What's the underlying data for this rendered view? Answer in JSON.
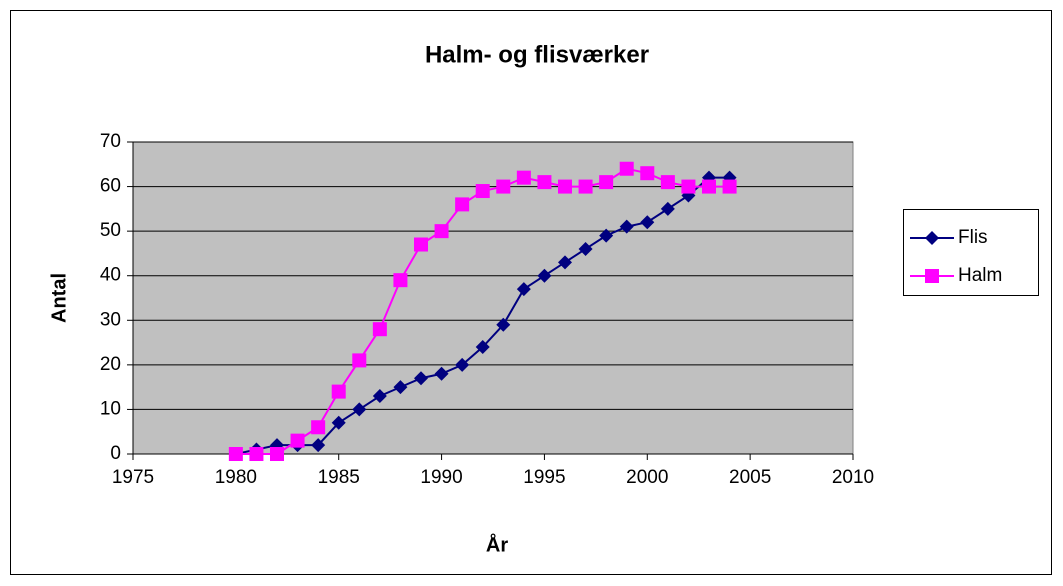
{
  "chart_data": {
    "type": "line",
    "title": "Halm- og flisværker",
    "x_label": "År",
    "y_label": "Antal",
    "x": [
      1980,
      1981,
      1982,
      1983,
      1984,
      1985,
      1986,
      1987,
      1988,
      1989,
      1990,
      1991,
      1992,
      1993,
      1994,
      1995,
      1996,
      1997,
      1998,
      1999,
      2000,
      2001,
      2002,
      2003,
      2004
    ],
    "series": [
      {
        "name": "Flis",
        "color": "#000080",
        "marker": "diamond",
        "values": [
          0,
          1,
          2,
          2,
          2,
          7,
          10,
          13,
          15,
          17,
          18,
          20,
          24,
          29,
          37,
          40,
          43,
          46,
          49,
          51,
          52,
          55,
          58,
          62,
          62
        ]
      },
      {
        "name": "Halm",
        "color": "#ff00ff",
        "marker": "square",
        "values": [
          0,
          0,
          0,
          3,
          6,
          14,
          21,
          28,
          39,
          47,
          50,
          56,
          59,
          60,
          62,
          61,
          60,
          60,
          61,
          64,
          63,
          61,
          60,
          60,
          60
        ]
      }
    ],
    "xlim": [
      1975,
      2010
    ],
    "xticks": [
      1975,
      1980,
      1985,
      1990,
      1995,
      2000,
      2005,
      2010
    ],
    "ylim": [
      0,
      70
    ],
    "yticks": [
      0,
      10,
      20,
      30,
      40,
      50,
      60,
      70
    ],
    "grid": true,
    "legend": "right"
  }
}
